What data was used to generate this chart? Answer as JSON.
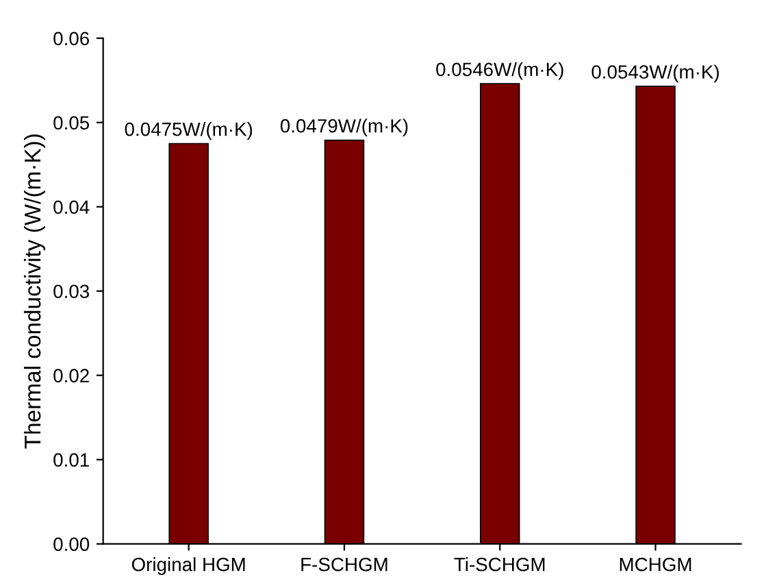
{
  "chart_data": {
    "type": "bar",
    "ylabel": "Thermal conductivity (W/(m·K))",
    "categories": [
      "Original HGM",
      "F-SCHGM",
      "Ti-SCHGM",
      "MCHGM"
    ],
    "values": [
      0.0475,
      0.0479,
      0.0546,
      0.0543
    ],
    "value_labels": [
      "0.0475W/(m·K)",
      "0.0479W/(m·K)",
      "0.0546W/(m·K)",
      "0.0543W/(m·K)"
    ],
    "color": "#7a0000",
    "ylim": [
      0,
      0.06
    ],
    "yticks": [
      {
        "value": 0,
        "label": "0.00"
      },
      {
        "value": 0.01,
        "label": "0.01"
      },
      {
        "value": 0.02,
        "label": "0.02"
      },
      {
        "value": 0.03,
        "label": "0.03"
      },
      {
        "value": 0.04,
        "label": "0.04"
      },
      {
        "value": 0.05,
        "label": "0.05"
      },
      {
        "value": 0.06,
        "label": "0.06"
      }
    ],
    "grid": false
  }
}
